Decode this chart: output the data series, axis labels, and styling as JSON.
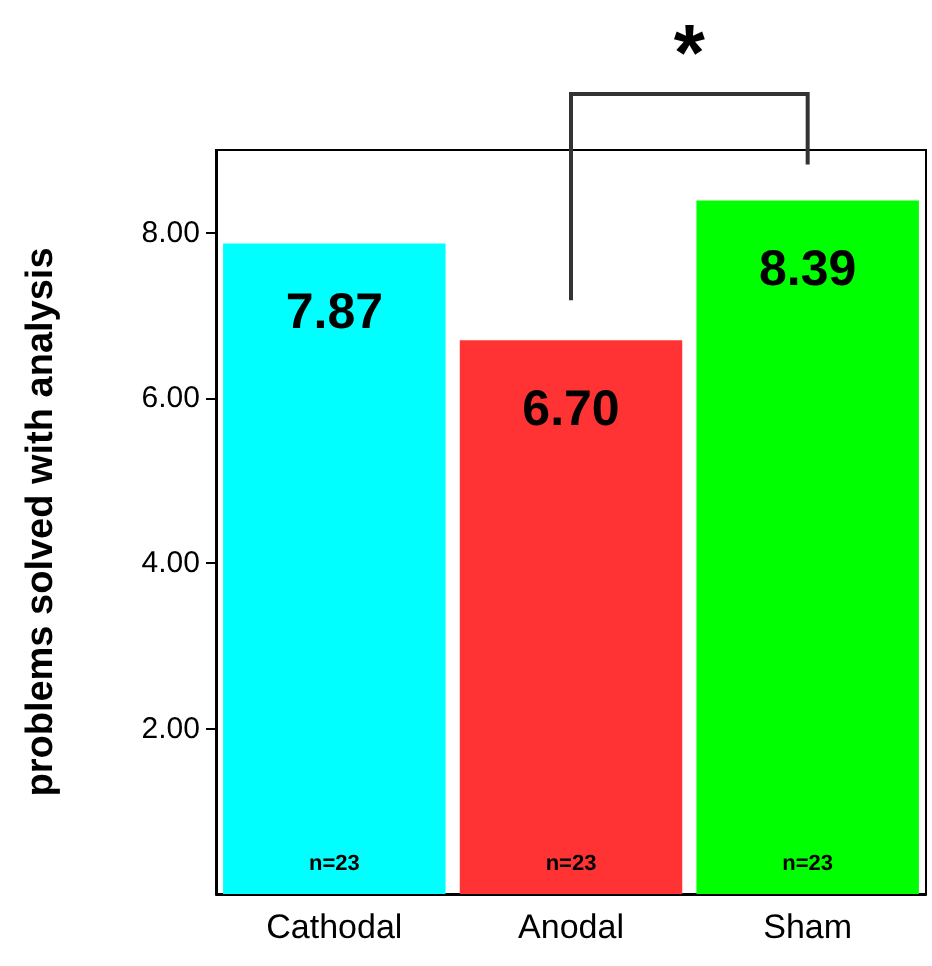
{
  "chart_data": {
    "type": "bar",
    "ylabel": "problems solved with analysis",
    "categories": [
      "Cathodal",
      "Anodal",
      "Sham"
    ],
    "values": [
      7.87,
      6.7,
      8.39
    ],
    "colors": [
      "#00ffff",
      "#ff3333",
      "#00ff00"
    ],
    "value_labels": [
      "7.87",
      "6.70",
      "8.39"
    ],
    "ylim": [
      0,
      9
    ],
    "yticks": [
      {
        "value": 2,
        "label": "2.00"
      },
      {
        "value": 4,
        "label": "4.00"
      },
      {
        "value": 6,
        "label": "6.00"
      },
      {
        "value": 8,
        "label": "8.00"
      }
    ],
    "grid": false,
    "annotations": [
      "n=23",
      "n=23",
      "n=23",
      "*"
    ]
  }
}
